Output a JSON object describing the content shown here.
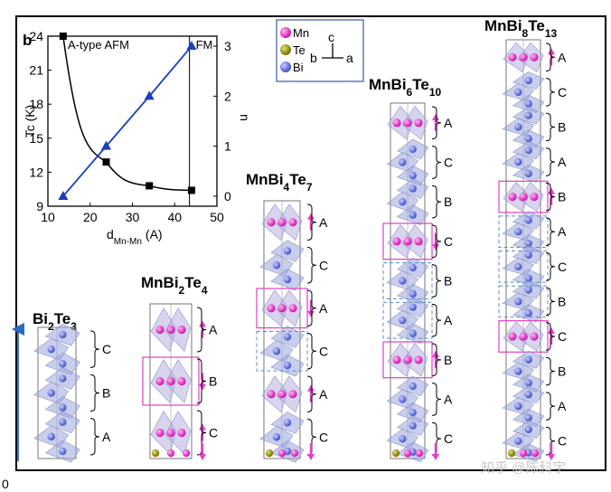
{
  "panel_label": "b",
  "edge_label": "0",
  "watermark": "知乎 @陈科宇",
  "legend": {
    "items": [
      {
        "label": "Mn",
        "color": "#e020c0"
      },
      {
        "label": "Te",
        "color": "#8a8a10"
      },
      {
        "label": "Bi",
        "color": "#5a6ad8"
      }
    ],
    "axis_c": "c",
    "axis_b": "b",
    "axis_a": "a"
  },
  "chart_data": {
    "type": "line",
    "xlabel_main": "d",
    "xlabel_sub": "Mn-Mn",
    "xlabel_unit": "(A)",
    "ylabel_left": "Tc (K)",
    "ylabel_right": "n",
    "xlim": [
      10,
      50
    ],
    "ylim_left": [
      9,
      24
    ],
    "ylim_right": [
      -0.2,
      3.2
    ],
    "x_ticks": [
      "10",
      "20",
      "30",
      "40",
      "50"
    ],
    "y_left_ticks": [
      "9",
      "12",
      "15",
      "18",
      "21",
      "24"
    ],
    "y_right_ticks": [
      "0",
      "1",
      "2",
      "3"
    ],
    "annotations": {
      "left": "A-type AFM",
      "right": "FM",
      "boundary_x": 43.5
    },
    "series": [
      {
        "name": "Tc",
        "axis": "left",
        "color": "#000000",
        "marker": "square",
        "x": [
          13.6,
          23.8,
          34.0,
          44.0
        ],
        "y": [
          24.0,
          12.9,
          10.8,
          10.4
        ]
      },
      {
        "name": "n",
        "axis": "right",
        "color": "#1a3fbf",
        "marker": "triangle",
        "x": [
          13.6,
          23.8,
          34.0,
          44.0
        ],
        "y": [
          0,
          1,
          2,
          3
        ]
      }
    ]
  },
  "structures": [
    {
      "formula": {
        "main": "Bi",
        "s1": "2",
        "mid": "Te",
        "s2": "3",
        "mid2": "",
        "s3": ""
      },
      "layers": [
        "C",
        "B",
        "A"
      ]
    },
    {
      "formula": {
        "main": "MnBi",
        "s1": "2",
        "mid": "Te",
        "s2": "4",
        "mid2": "",
        "s3": ""
      },
      "layers": [
        "A",
        "B",
        "C"
      ]
    },
    {
      "formula": {
        "main": "MnBi",
        "s1": "4",
        "mid": "Te",
        "s2": "7",
        "mid2": "",
        "s3": ""
      },
      "layers": [
        "A",
        "C",
        "A",
        "C",
        "A",
        "C"
      ]
    },
    {
      "formula": {
        "main": "MnBi",
        "s1": "6",
        "mid": "Te",
        "s2": "10",
        "mid2": "",
        "s3": ""
      },
      "layers": [
        "A",
        "C",
        "B",
        "C",
        "B",
        "A",
        "B",
        "A",
        "C"
      ]
    },
    {
      "formula": {
        "main": "MnBi",
        "s1": "8",
        "mid": "Te",
        "s2": "13",
        "mid2": "",
        "s3": ""
      },
      "layers": [
        "A",
        "C",
        "B",
        "A",
        "B",
        "A",
        "C",
        "B",
        "C",
        "B",
        "A",
        "C"
      ]
    }
  ]
}
